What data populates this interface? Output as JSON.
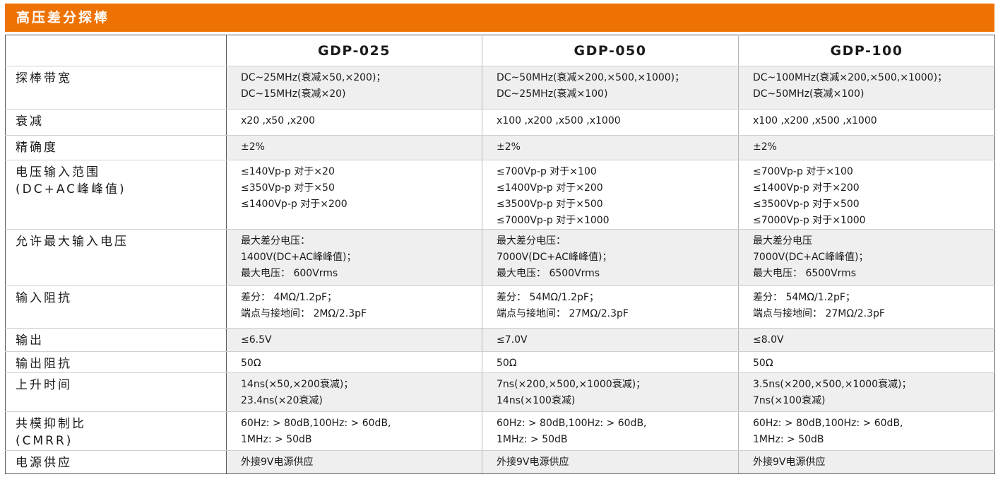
{
  "banner": {
    "title": "高压差分探棒"
  },
  "header": {
    "models": [
      "GDP-025",
      "GDP-050",
      "GDP-100"
    ]
  },
  "rows": [
    {
      "label": [
        "探棒带宽"
      ],
      "shade": true,
      "cells": [
        [
          "DC~25MHz(衰减×50,×200)；",
          "DC~15MHz(衰减×20)"
        ],
        [
          "DC~50MHz(衰减×200,×500,×1000)；",
          "DC~25MHz(衰减×100)"
        ],
        [
          "DC~100MHz(衰减×200,×500,×1000)；",
          "DC~50MHz(衰减×100)"
        ]
      ]
    },
    {
      "label": [
        "衰减"
      ],
      "shade": false,
      "cells": [
        [
          "x20 ,x50 ,x200"
        ],
        [
          "x100 ,x200 ,x500 ,x1000"
        ],
        [
          "x100 ,x200 ,x500 ,x1000"
        ]
      ]
    },
    {
      "label": [
        "精确度"
      ],
      "shade": true,
      "cells": [
        [
          "±2%"
        ],
        [
          "±2%"
        ],
        [
          "±2%"
        ]
      ]
    },
    {
      "label": [
        "电压输入范围",
        "(DC+AC峰峰值)"
      ],
      "shade": false,
      "cells": [
        [
          "≤140Vp-p 对于×20",
          "≤350Vp-p 对于×50",
          "≤1400Vp-p 对于×200"
        ],
        [
          "≤700Vp-p 对于×100",
          "≤1400Vp-p 对于×200",
          "≤3500Vp-p 对于×500",
          "≤7000Vp-p 对于×1000"
        ],
        [
          "≤700Vp-p 对于×100",
          "≤1400Vp-p 对于×200",
          "≤3500Vp-p 对于×500",
          "≤7000Vp-p 对于×1000"
        ]
      ]
    },
    {
      "label": [
        "允许最大输入电压"
      ],
      "shade": true,
      "cells": [
        [
          "最大差分电压：",
          "1400V(DC+AC峰峰值)；",
          "最大电压：  600Vrms"
        ],
        [
          "最大差分电压：",
          "7000V(DC+AC峰峰值)；",
          "最大电压：  6500Vrms"
        ],
        [
          "最大差分电压",
          "7000V(DC+AC峰峰值)；",
          "最大电压：  6500Vrms"
        ]
      ]
    },
    {
      "label": [
        "输入阻抗"
      ],
      "shade": false,
      "cells": [
        [
          "差分：  4MΩ/1.2pF；",
          "端点与接地间：  2MΩ/2.3pF"
        ],
        [
          "差分：  54MΩ/1.2pF；",
          "端点与接地间：  27MΩ/2.3pF"
        ],
        [
          "差分：  54MΩ/1.2pF；",
          "端点与接地间：  27MΩ/2.3pF"
        ]
      ]
    },
    {
      "label": [
        "输出"
      ],
      "shade": true,
      "cells": [
        [
          "≤6.5V"
        ],
        [
          "≤7.0V"
        ],
        [
          "≤8.0V"
        ]
      ]
    },
    {
      "label": [
        "输出阻抗"
      ],
      "shade": false,
      "cells": [
        [
          "50Ω"
        ],
        [
          "50Ω"
        ],
        [
          "50Ω"
        ]
      ]
    },
    {
      "label": [
        "上升时间"
      ],
      "shade": true,
      "cells": [
        [
          "14ns(×50,×200衰减)；",
          "23.4ns(×20衰减)"
        ],
        [
          "7ns(×200,×500,×1000衰减)；",
          "14ns(×100衰减)"
        ],
        [
          "3.5ns(×200,×500,×1000衰减)；",
          "7ns(×100衰减)"
        ]
      ]
    },
    {
      "label": [
        "共模抑制比",
        "(CMRR)"
      ],
      "shade": false,
      "cells": [
        [
          "60Hz: > 80dB,100Hz: > 60dB,",
          "1MHz: > 50dB"
        ],
        [
          "60Hz: > 80dB,100Hz: > 60dB,",
          "1MHz: > 50dB"
        ],
        [
          "60Hz: > 80dB,100Hz: > 60dB,",
          "1MHz: > 50dB"
        ]
      ]
    },
    {
      "label": [
        "电源供应"
      ],
      "shade": true,
      "cells": [
        [
          "外接9V电源供应"
        ],
        [
          "外接9V电源供应"
        ],
        [
          "外接9V电源供应"
        ]
      ]
    }
  ],
  "colors": {
    "banner": "#ee7203",
    "shade": "#efefef"
  }
}
